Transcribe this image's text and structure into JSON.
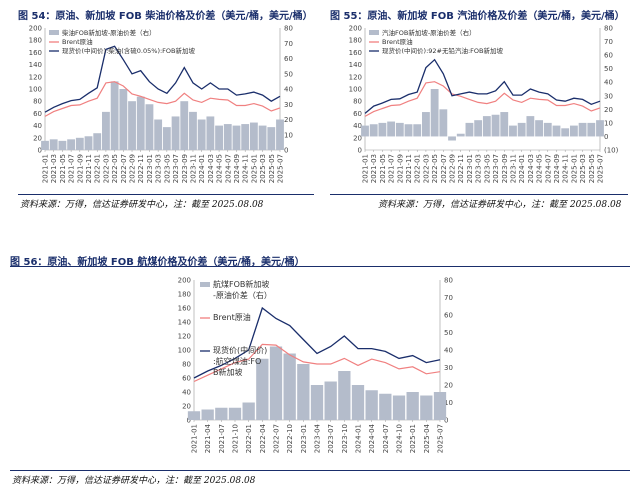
{
  "figures": [
    {
      "title": "图 54：原油、新加坡 FOB 柴油价格及价差（美元/桶，美元/桶）",
      "source": "资料来源：万得，信达证券研发中心，注：截至 2025.08.08"
    },
    {
      "title": "图 55：原油、新加坡 FOB 汽油价格及价差（美元/桶，美元/桶）",
      "source": "资料来源：万得，信达证券研发中心，注：截至 2025.08.08"
    },
    {
      "title": "图 56：原油、新加坡 FOB 航煤价格及价差（美元/桶，美元/桶）",
      "source": "资料来源：万得，信达证券研发中心，注：截至 2025.08.08"
    }
  ],
  "colors": {
    "spread": "#b4bccb",
    "brent": "#f08080",
    "product": "#1a2e6b",
    "title": "#1a2e6b"
  },
  "chart_data": [
    {
      "type": "line",
      "x": [
        "2021-01",
        "2021-03",
        "2021-05",
        "2021-07",
        "2021-09",
        "2021-11",
        "2022-01",
        "2022-03",
        "2022-05",
        "2022-07",
        "2022-09",
        "2022-11",
        "2023-01",
        "2023-03",
        "2023-05",
        "2023-07",
        "2023-09",
        "2023-11",
        "2024-01",
        "2024-03",
        "2024-05",
        "2024-07",
        "2024-09",
        "2024-11",
        "2025-01",
        "2025-03",
        "2025-05",
        "2025-07"
      ],
      "ylim": [
        0,
        200
      ],
      "yticks": [
        0,
        20,
        40,
        60,
        80,
        100,
        120,
        140,
        160,
        180,
        200
      ],
      "y2lim": [
        0,
        80
      ],
      "y2ticks": [
        0,
        10,
        20,
        30,
        40,
        50,
        60,
        70,
        80
      ],
      "series": [
        {
          "name": "柴油FOB新加坡-原油价差（右）",
          "axis": "right",
          "kind": "area",
          "values": [
            6,
            7,
            6,
            7,
            8,
            9,
            11,
            25,
            45,
            40,
            32,
            35,
            30,
            20,
            15,
            22,
            32,
            25,
            20,
            22,
            16,
            17,
            16,
            17,
            18,
            16,
            15,
            20
          ]
        },
        {
          "name": "Brent原油",
          "axis": "left",
          "kind": "line",
          "values": [
            55,
            63,
            68,
            73,
            74,
            80,
            85,
            110,
            112,
            105,
            92,
            88,
            83,
            78,
            76,
            80,
            93,
            82,
            78,
            85,
            83,
            82,
            73,
            73,
            76,
            72,
            64,
            69
          ]
        },
        {
          "name": "现货价(中间价):柴油(含硫0.05%):FOB新加坡",
          "axis": "left",
          "kind": "line",
          "values": [
            62,
            70,
            76,
            81,
            83,
            93,
            102,
            165,
            170,
            148,
            125,
            130,
            112,
            100,
            93,
            110,
            135,
            110,
            100,
            110,
            100,
            100,
            90,
            92,
            95,
            90,
            80,
            88
          ]
        }
      ]
    },
    {
      "type": "line",
      "x": [
        "2021-01",
        "2021-03",
        "2021-05",
        "2021-07",
        "2021-09",
        "2021-11",
        "2022-01",
        "2022-03",
        "2022-05",
        "2022-07",
        "2022-09",
        "2022-11",
        "2023-01",
        "2023-03",
        "2023-05",
        "2023-07",
        "2023-09",
        "2023-11",
        "2024-01",
        "2024-03",
        "2024-05",
        "2024-07",
        "2024-09",
        "2024-11",
        "2025-01",
        "2025-03",
        "2025-05",
        "2025-07"
      ],
      "ylim": [
        0,
        200
      ],
      "yticks": [
        0,
        20,
        40,
        60,
        80,
        100,
        120,
        140,
        160,
        180,
        200
      ],
      "y2lim": [
        -10,
        80
      ],
      "y2ticks": [
        -10,
        0,
        10,
        20,
        30,
        40,
        50,
        60,
        70,
        80
      ],
      "y2ticklabels": [
        "(10)",
        "0",
        "10",
        "20",
        "30",
        "40",
        "50",
        "60",
        "70",
        "80"
      ],
      "series": [
        {
          "name": "汽油FOB新加坡-原油价差（右）",
          "axis": "right",
          "kind": "area",
          "values": [
            8,
            9,
            10,
            11,
            10,
            9,
            9,
            18,
            35,
            20,
            -3,
            2,
            10,
            12,
            15,
            16,
            18,
            8,
            10,
            15,
            12,
            10,
            8,
            6,
            8,
            10,
            10,
            12
          ]
        },
        {
          "name": "Brent原油",
          "axis": "left",
          "kind": "line",
          "values": [
            55,
            63,
            68,
            73,
            74,
            80,
            85,
            110,
            112,
            105,
            92,
            88,
            83,
            78,
            76,
            80,
            93,
            82,
            78,
            85,
            83,
            82,
            73,
            73,
            76,
            72,
            64,
            69
          ]
        },
        {
          "name": "现货价(中间价):92#无铅汽油:FOB新加坡",
          "axis": "left",
          "kind": "line",
          "values": [
            60,
            72,
            77,
            83,
            84,
            91,
            95,
            135,
            148,
            125,
            89,
            92,
            95,
            92,
            92,
            97,
            112,
            90,
            90,
            100,
            95,
            92,
            82,
            80,
            85,
            83,
            75,
            80
          ]
        }
      ]
    },
    {
      "type": "line",
      "x": [
        "2021-01",
        "2021-04",
        "2021-07",
        "2021-10",
        "2022-01",
        "2022-04",
        "2022-07",
        "2022-10",
        "2023-01",
        "2023-04",
        "2023-07",
        "2023-10",
        "2024-01",
        "2024-04",
        "2024-07",
        "2024-10",
        "2025-01",
        "2025-04",
        "2025-07"
      ],
      "ylim": [
        0,
        200
      ],
      "yticks": [
        0,
        20,
        40,
        60,
        80,
        100,
        120,
        140,
        160,
        180,
        200
      ],
      "y2lim": [
        0,
        80
      ],
      "y2ticks": [
        0,
        10,
        20,
        30,
        40,
        50,
        60,
        70,
        80
      ],
      "series": [
        {
          "name": "航煤FOB新加坡-原油价差（右）",
          "axis": "right",
          "kind": "area",
          "values": [
            5,
            6,
            7,
            7,
            10,
            35,
            42,
            38,
            32,
            20,
            22,
            28,
            20,
            17,
            15,
            14,
            16,
            14,
            16
          ]
        },
        {
          "name": "Brent原油",
          "axis": "left",
          "kind": "line",
          "values": [
            55,
            64,
            73,
            82,
            87,
            108,
            107,
            93,
            83,
            80,
            80,
            88,
            78,
            87,
            82,
            73,
            76,
            66,
            69
          ]
        },
        {
          "name": "现货价(中间价):航空煤油:FOB新加坡",
          "axis": "left",
          "kind": "line",
          "values": [
            60,
            70,
            78,
            88,
            100,
            160,
            145,
            135,
            115,
            95,
            105,
            120,
            102,
            102,
            98,
            88,
            92,
            82,
            86
          ]
        }
      ]
    }
  ]
}
